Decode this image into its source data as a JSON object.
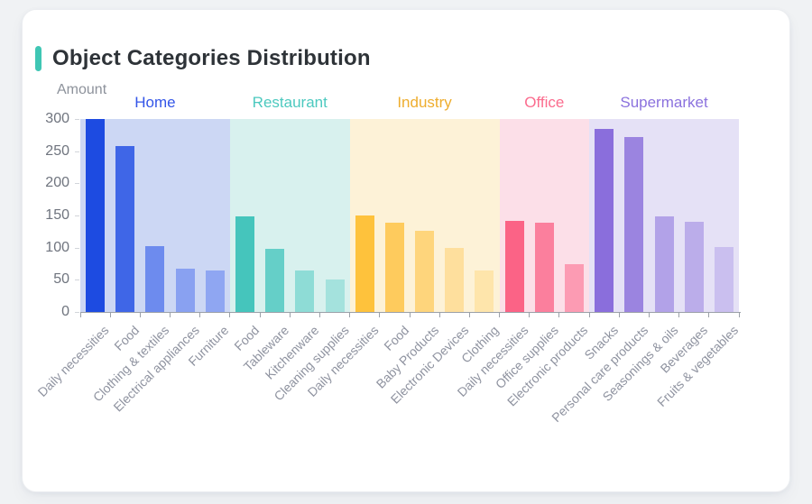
{
  "card": {
    "accent_color": "#3fc6b4"
  },
  "chart_data": {
    "type": "bar",
    "title": "Object Categories Distribution",
    "xlabel": "",
    "ylabel": "Amount",
    "ylim": [
      0,
      300
    ],
    "y_ticks": [
      300,
      250,
      200,
      150,
      100,
      50,
      0
    ],
    "grid": false,
    "legend_position": "group-labels-above-bands",
    "axis_color": "#9ba0a8",
    "groups": [
      {
        "name": "Home",
        "label_color": "#3355e8",
        "band_color": "#ccd7f4",
        "categories": [
          "Daily necessities",
          "Food",
          "Clothing & textiles",
          "Electrical appliances",
          "Furniture"
        ],
        "values": [
          300,
          258,
          102,
          68,
          64
        ],
        "bar_colors": [
          "#1d4be1",
          "#3f66e7",
          "#6d8bee",
          "#89a1f1",
          "#8fa6f2"
        ]
      },
      {
        "name": "Restaurant",
        "label_color": "#4cc9bf",
        "band_color": "#d8f1ee",
        "categories": [
          "Food",
          "Tableware",
          "Kitchenware",
          "Cleaning supplies"
        ],
        "values": [
          148,
          98,
          65,
          51
        ],
        "bar_colors": [
          "#45c5bc",
          "#65cfc8",
          "#8edcd6",
          "#a4e2dd"
        ]
      },
      {
        "name": "Industry",
        "label_color": "#eead2e",
        "band_color": "#fdf2d7",
        "categories": [
          "Daily necessities",
          "Food",
          "Baby Products",
          "Electronic Devices",
          "Clothing"
        ],
        "values": [
          150,
          139,
          126,
          99,
          64
        ],
        "bar_colors": [
          "#fec23c",
          "#fecb5d",
          "#fed57c",
          "#fedf9d",
          "#fee5ab"
        ]
      },
      {
        "name": "Office",
        "label_color": "#fb6c8e",
        "band_color": "#fcdfe8",
        "categories": [
          "Daily necessities",
          "Office supplies",
          "Electronic products"
        ],
        "values": [
          142,
          139,
          75
        ],
        "bar_colors": [
          "#fb6386",
          "#fb7f9d",
          "#fc9bb3"
        ]
      },
      {
        "name": "Supermarket",
        "label_color": "#8b72de",
        "band_color": "#e5e1f6",
        "categories": [
          "Snacks",
          "Personal care products",
          "Seasonings & oils",
          "Beverages",
          "Fruits & vegetables"
        ],
        "values": [
          285,
          272,
          148,
          140,
          101
        ],
        "bar_colors": [
          "#8a6edc",
          "#9b84e0",
          "#b2a2e8",
          "#bbadea",
          "#cabfef"
        ]
      }
    ]
  }
}
